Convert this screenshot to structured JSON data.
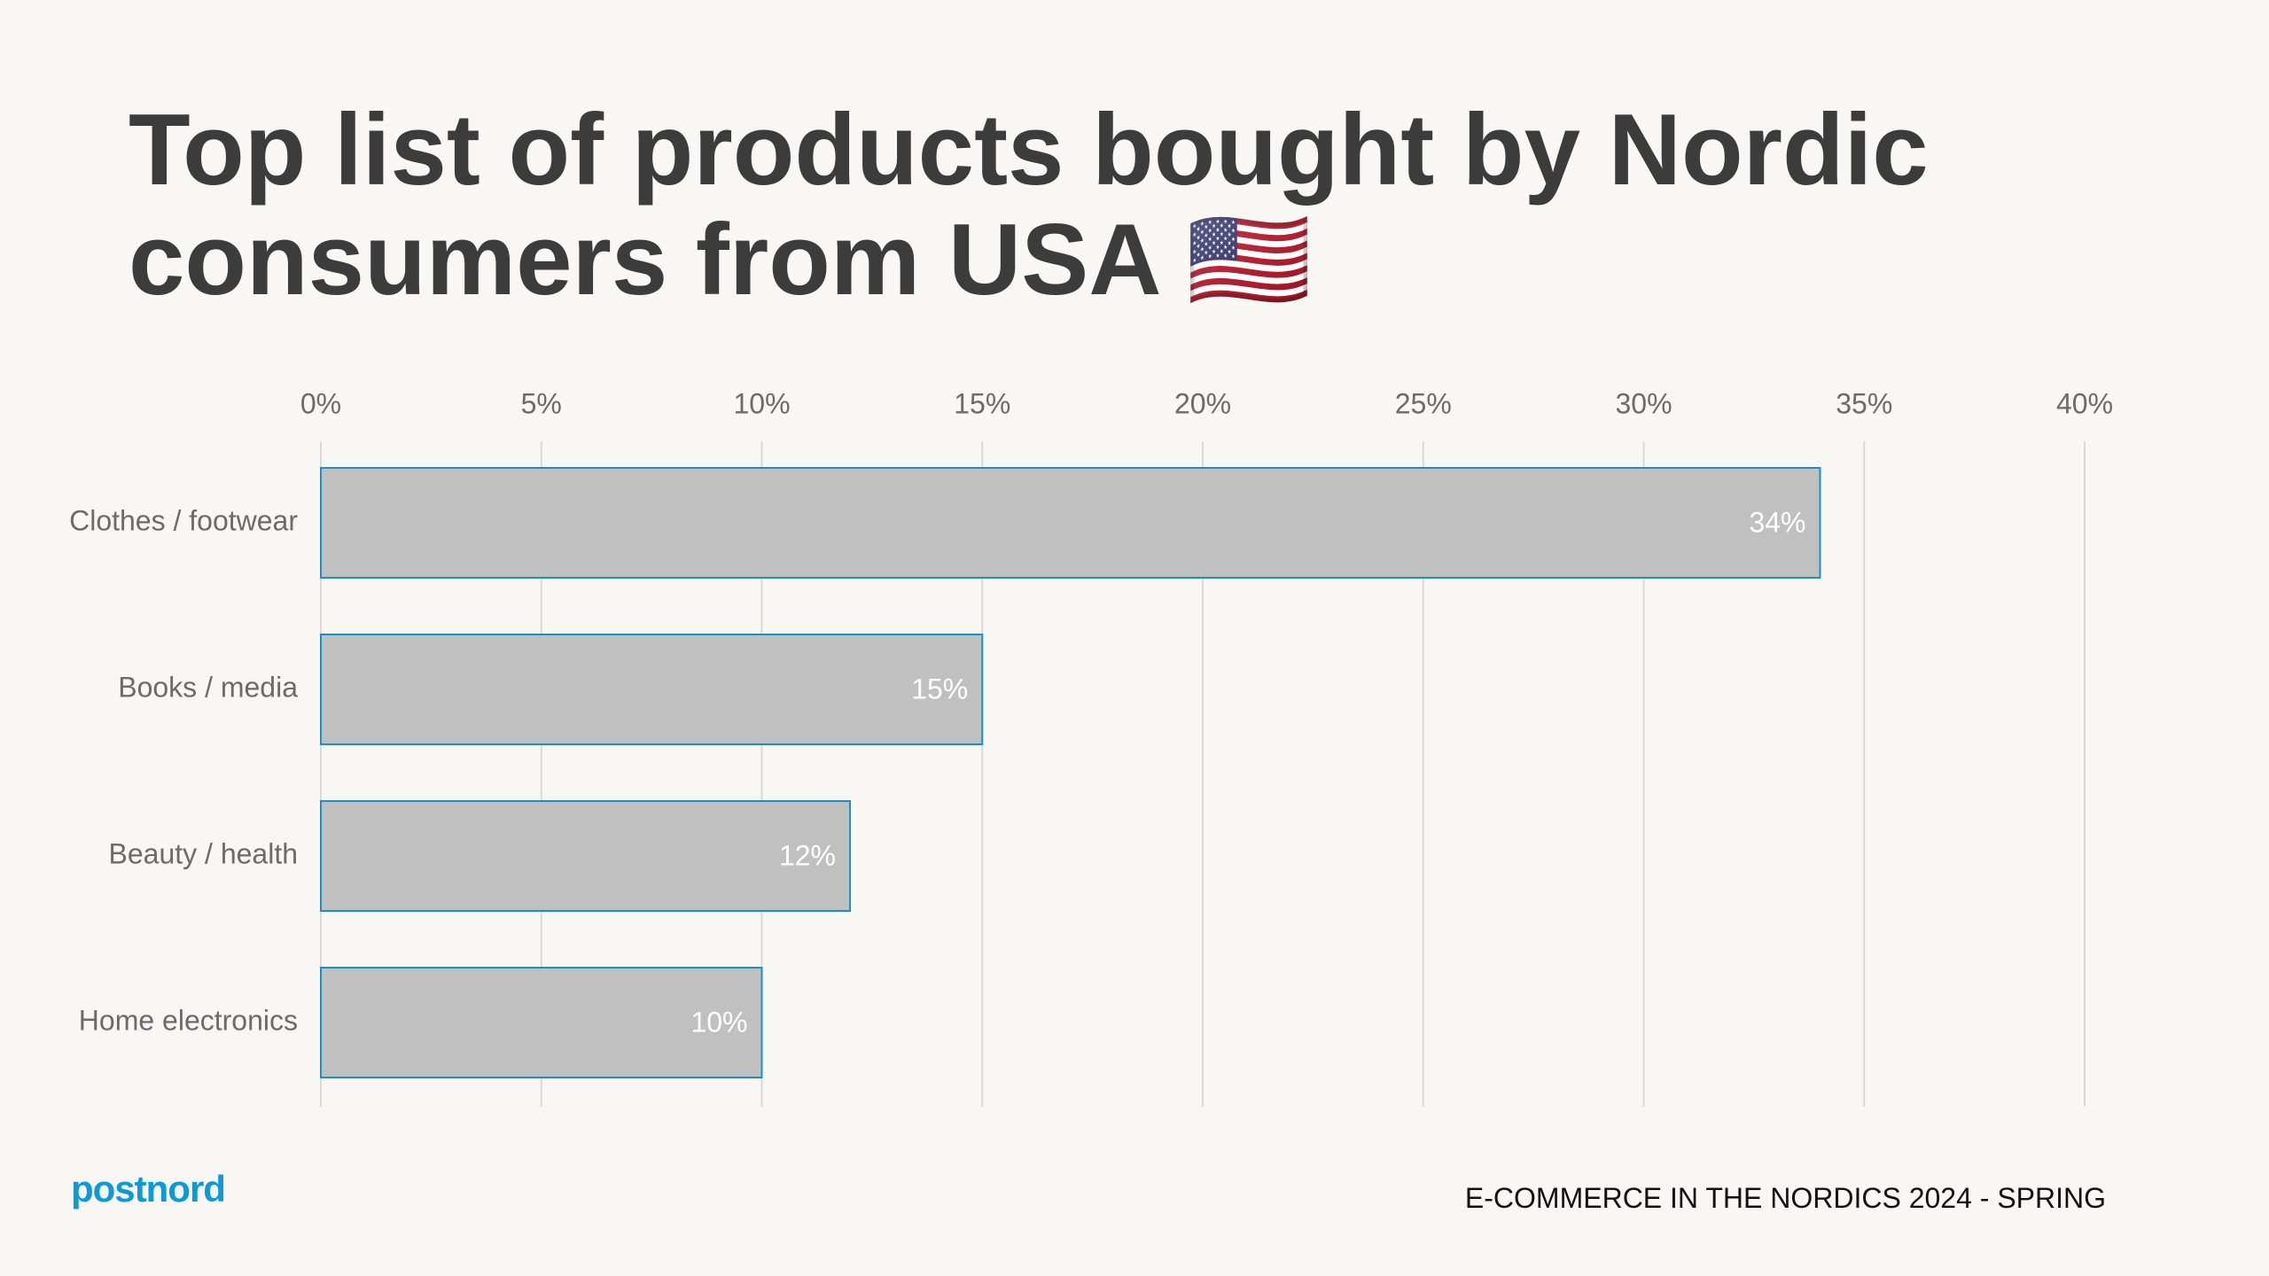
{
  "chart_data": {
    "type": "bar",
    "orientation": "horizontal",
    "title": "Top list of products bought by Nordic consumers from USA 🇺🇸",
    "categories": [
      "Clothes / footwear",
      "Books / media",
      "Beauty / health",
      "Home electronics"
    ],
    "values": [
      34,
      15,
      12,
      10
    ],
    "value_labels": [
      "34%",
      "15%",
      "12%",
      "10%"
    ],
    "color": "#c0c0c0",
    "edge_color": "#1a8fc9",
    "xlim": [
      0,
      40
    ],
    "xticks": [
      {
        "value": 0,
        "label": "0%"
      },
      {
        "value": 5,
        "label": "5%"
      },
      {
        "value": 10,
        "label": "10%"
      },
      {
        "value": 15,
        "label": "15%"
      },
      {
        "value": 20,
        "label": "20%"
      },
      {
        "value": 25,
        "label": "25%"
      },
      {
        "value": 30,
        "label": "30%"
      },
      {
        "value": 35,
        "label": "35%"
      },
      {
        "value": 40,
        "label": "40%"
      }
    ],
    "grid": true
  },
  "logo": "postnord",
  "footer": "E-COMMERCE IN THE NORDICS 2024 - SPRING"
}
